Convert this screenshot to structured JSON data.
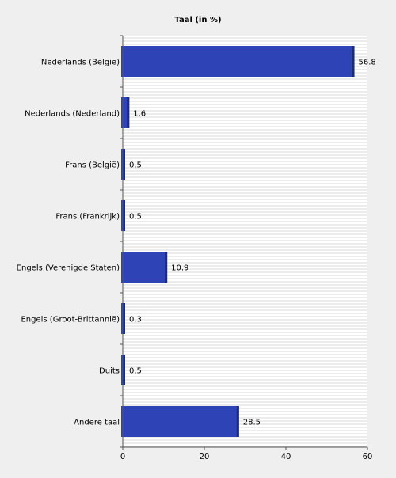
{
  "chart_data": {
    "type": "bar",
    "orientation": "horizontal",
    "title": "Taal (in %)",
    "xlabel": "",
    "ylabel": "",
    "categories": [
      "Nederlands (België)",
      "Nederlands (Nederland)",
      "Frans (België)",
      "Frans (Frankrijk)",
      "Engels (Verenigde Staten)",
      "Engels (Groot-Brittannië)",
      "Duits",
      "Andere taal"
    ],
    "values": [
      56.8,
      1.6,
      0.5,
      0.5,
      10.9,
      0.3,
      0.5,
      28.5
    ],
    "value_labels": [
      "56.8",
      "1.6",
      "0.5",
      "0.5",
      "10.9",
      "0.3",
      "0.5",
      "28.5"
    ],
    "xlim": [
      0,
      60
    ],
    "xticks": [
      0,
      20,
      40,
      60
    ],
    "grid": "horizontal lines in plot area",
    "legend": "none",
    "colors": {
      "bar": "#2e44b6",
      "bar_edge": "#1a2a7a",
      "background": "#efefef",
      "plot_background": "#ffffff",
      "grid": "#d8d8d8"
    }
  }
}
